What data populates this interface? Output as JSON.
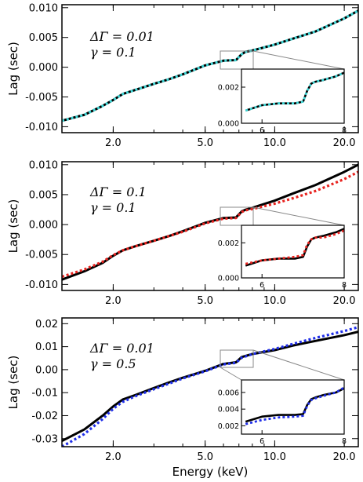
{
  "colors": {
    "model_line": "#000000",
    "panel1_dotted": "#3fd6d6",
    "panel2_dotted": "#e8231f",
    "panel3_dotted": "#1f2ee8",
    "zoom_box": "#888888"
  },
  "chart_data": [
    {
      "type": "line",
      "xlabel": "",
      "ylabel": "Lag (sec)",
      "xscale": "log",
      "xlim": [
        1.2,
        23
      ],
      "ylim": [
        -0.011,
        0.0105
      ],
      "xticks": [
        "2.0",
        "5.0",
        "10.0",
        "20.0"
      ],
      "yticks": [
        "-0.010",
        "-0.005",
        "0.000",
        "0.005",
        "0.010"
      ],
      "annotation": [
        "ΔΓ = 0.01",
        "γ = 0.1"
      ],
      "series": [
        {
          "style": "solid",
          "color": "#000000",
          "x": [
            1.2,
            1.5,
            1.8,
            2.0,
            2.2,
            2.5,
            3.0,
            3.5,
            4.0,
            5.0,
            6.0,
            6.8,
            7.2,
            7.5,
            8.0,
            10.0,
            12.0,
            15.0,
            20.0,
            23.0
          ],
          "y": [
            -0.009,
            -0.008,
            -0.0065,
            -0.0055,
            -0.0045,
            -0.0038,
            -0.0028,
            -0.002,
            -0.0012,
            0.0003,
            0.0011,
            0.0012,
            0.0022,
            0.0026,
            0.0028,
            0.0038,
            0.0048,
            0.006,
            0.0082,
            0.0095
          ]
        },
        {
          "style": "dotted",
          "color": "#3fd6d6",
          "x": [
            1.2,
            1.5,
            1.8,
            2.0,
            2.2,
            2.5,
            3.0,
            3.5,
            4.0,
            5.0,
            6.0,
            6.8,
            7.2,
            7.5,
            8.0,
            10.0,
            12.0,
            15.0,
            20.0,
            23.0
          ],
          "y": [
            -0.009,
            -0.008,
            -0.0065,
            -0.0055,
            -0.0045,
            -0.0038,
            -0.0028,
            -0.002,
            -0.0012,
            0.0003,
            0.0011,
            0.0012,
            0.0022,
            0.0026,
            0.0028,
            0.0038,
            0.0048,
            0.006,
            0.0082,
            0.0095
          ]
        }
      ],
      "inset": {
        "xlim": [
          5.5,
          8.0
        ],
        "ylim": [
          0.0,
          0.003
        ],
        "xticks": [
          "6",
          "8"
        ],
        "yticks": [
          "0.000",
          "0.002"
        ],
        "series": [
          {
            "style": "solid",
            "color": "#000000",
            "x": [
              5.6,
              6.0,
              6.4,
              6.8,
              7.0,
              7.1,
              7.2,
              7.3,
              7.5,
              7.8,
              8.0
            ],
            "y": [
              0.0007,
              0.001,
              0.0011,
              0.0011,
              0.0012,
              0.0018,
              0.0022,
              0.0023,
              0.0024,
              0.0026,
              0.0028
            ]
          },
          {
            "style": "dotted",
            "color": "#3fd6d6",
            "x": [
              5.6,
              6.0,
              6.4,
              6.8,
              7.0,
              7.1,
              7.2,
              7.3,
              7.5,
              7.8,
              8.0
            ],
            "y": [
              0.0007,
              0.001,
              0.0011,
              0.0011,
              0.0012,
              0.0018,
              0.0022,
              0.0023,
              0.0024,
              0.0026,
              0.0028
            ]
          }
        ]
      }
    },
    {
      "type": "line",
      "xlabel": "",
      "ylabel": "Lag (sec)",
      "xscale": "log",
      "xlim": [
        1.2,
        23
      ],
      "ylim": [
        -0.011,
        0.0105
      ],
      "xticks": [
        "2.0",
        "5.0",
        "10.0",
        "20.0"
      ],
      "yticks": [
        "-0.010",
        "-0.005",
        "0.000",
        "0.005",
        "0.010"
      ],
      "annotation": [
        "ΔΓ = 0.1",
        "γ = 0.1"
      ],
      "series": [
        {
          "style": "solid",
          "color": "#000000",
          "x": [
            1.2,
            1.5,
            1.8,
            2.0,
            2.2,
            2.5,
            3.0,
            3.5,
            4.0,
            5.0,
            6.0,
            6.8,
            7.2,
            7.5,
            8.0,
            10.0,
            12.0,
            15.0,
            20.0,
            23.0
          ],
          "y": [
            -0.0092,
            -0.0078,
            -0.0064,
            -0.0052,
            -0.0043,
            -0.0036,
            -0.0027,
            -0.0019,
            -0.0011,
            0.0003,
            0.0011,
            0.0012,
            0.0022,
            0.0025,
            0.0028,
            0.004,
            0.0052,
            0.0066,
            0.0088,
            0.01
          ]
        },
        {
          "style": "dotted",
          "color": "#e8231f",
          "x": [
            1.2,
            1.5,
            1.8,
            2.0,
            2.2,
            2.5,
            3.0,
            3.5,
            4.0,
            5.0,
            6.0,
            6.8,
            7.2,
            7.5,
            8.0,
            10.0,
            12.0,
            15.0,
            20.0,
            23.0
          ],
          "y": [
            -0.0087,
            -0.0075,
            -0.0062,
            -0.0051,
            -0.0043,
            -0.0036,
            -0.0027,
            -0.0019,
            -0.0012,
            0.0002,
            0.001,
            0.0011,
            0.0021,
            0.0024,
            0.0026,
            0.0035,
            0.0044,
            0.0056,
            0.0076,
            0.0088
          ]
        }
      ],
      "inset": {
        "xlim": [
          5.5,
          8.0
        ],
        "ylim": [
          0.0,
          0.003
        ],
        "xticks": [
          "6",
          "8"
        ],
        "yticks": [
          "0.000",
          "0.002"
        ],
        "series": [
          {
            "style": "solid",
            "color": "#000000",
            "x": [
              5.6,
              6.0,
              6.4,
              6.8,
              7.0,
              7.1,
              7.2,
              7.3,
              7.5,
              7.8,
              8.0
            ],
            "y": [
              0.0007,
              0.001,
              0.0011,
              0.0011,
              0.0012,
              0.0018,
              0.0022,
              0.0023,
              0.0024,
              0.0026,
              0.0028
            ]
          },
          {
            "style": "dotted",
            "color": "#e8231f",
            "x": [
              5.6,
              6.0,
              6.4,
              6.8,
              7.0,
              7.1,
              7.2,
              7.3,
              7.5,
              7.8,
              8.0
            ],
            "y": [
              0.0008,
              0.001,
              0.0011,
              0.0012,
              0.0013,
              0.0019,
              0.0022,
              0.0023,
              0.0023,
              0.0025,
              0.0027
            ]
          }
        ]
      }
    },
    {
      "type": "line",
      "xlabel": "Energy (keV)",
      "ylabel": "Lag (sec)",
      "xscale": "log",
      "xlim": [
        1.2,
        23
      ],
      "ylim": [
        -0.0335,
        0.0225
      ],
      "xticks": [
        "2.0",
        "5.0",
        "10.0",
        "20.0"
      ],
      "yticks": [
        "-0.03",
        "-0.02",
        "-0.01",
        "0.00",
        "0.01",
        "0.02"
      ],
      "annotation": [
        "ΔΓ = 0.01",
        "γ = 0.5"
      ],
      "series": [
        {
          "style": "solid",
          "color": "#000000",
          "x": [
            1.2,
            1.5,
            1.8,
            2.0,
            2.2,
            2.5,
            3.0,
            3.5,
            4.0,
            5.0,
            6.0,
            6.8,
            7.2,
            7.5,
            8.0,
            10.0,
            12.0,
            15.0,
            20.0,
            23.0
          ],
          "y": [
            -0.031,
            -0.026,
            -0.02,
            -0.016,
            -0.013,
            -0.011,
            -0.008,
            -0.0055,
            -0.0035,
            -0.0005,
            0.0025,
            0.0032,
            0.0055,
            0.006,
            0.0068,
            0.0085,
            0.0105,
            0.0125,
            0.015,
            0.0165
          ]
        },
        {
          "style": "dotted",
          "color": "#1f2ee8",
          "x": [
            1.2,
            1.5,
            1.8,
            2.0,
            2.2,
            2.5,
            3.0,
            3.5,
            4.0,
            5.0,
            6.0,
            6.8,
            7.2,
            7.5,
            8.0,
            10.0,
            12.0,
            15.0,
            20.0,
            23.0
          ],
          "y": [
            -0.0335,
            -0.028,
            -0.0215,
            -0.017,
            -0.014,
            -0.0115,
            -0.0085,
            -0.006,
            -0.0038,
            -0.0007,
            0.0023,
            0.003,
            0.0052,
            0.0058,
            0.0068,
            0.009,
            0.0112,
            0.0138,
            0.0168,
            0.0185
          ]
        }
      ],
      "inset": {
        "xlim": [
          5.5,
          8.0
        ],
        "ylim": [
          0.001,
          0.0075
        ],
        "xticks": [
          "6",
          "8"
        ],
        "yticks": [
          "0.002",
          "0.004",
          "0.006"
        ],
        "series": [
          {
            "style": "solid",
            "color": "#000000",
            "x": [
              5.6,
              6.0,
              6.4,
              6.8,
              7.0,
              7.1,
              7.2,
              7.3,
              7.5,
              7.8,
              8.0
            ],
            "y": [
              0.0025,
              0.0031,
              0.0033,
              0.0033,
              0.0034,
              0.0045,
              0.0052,
              0.0054,
              0.0057,
              0.006,
              0.0065
            ]
          },
          {
            "style": "dotted",
            "color": "#1f2ee8",
            "x": [
              5.6,
              6.0,
              6.4,
              6.8,
              7.0,
              7.1,
              7.2,
              7.3,
              7.5,
              7.8,
              8.0
            ],
            "y": [
              0.0022,
              0.0027,
              0.003,
              0.0031,
              0.0032,
              0.0044,
              0.0051,
              0.0053,
              0.0056,
              0.006,
              0.0066
            ]
          }
        ]
      }
    }
  ]
}
